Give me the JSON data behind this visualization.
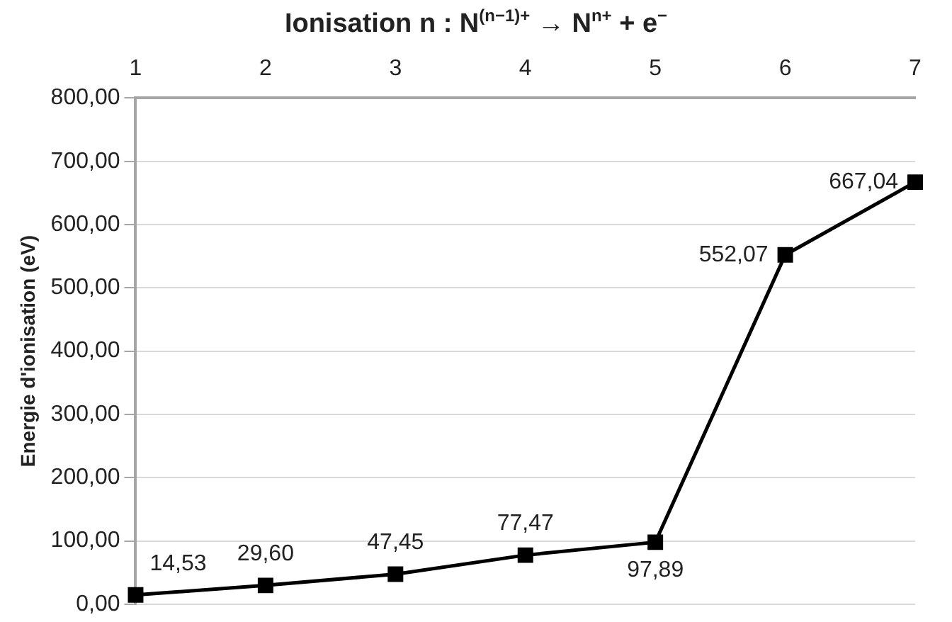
{
  "chart_data": {
    "type": "line",
    "title": "Ionisation n : N$^{(n−1)+}$ → N$^{n+}$ + e$^{−}$",
    "ylabel": "Energie d'ionisation (eV)",
    "x": [
      1,
      2,
      3,
      4,
      5,
      6,
      7
    ],
    "series": [
      {
        "color": "#000000",
        "values": [
          14.53,
          29.6,
          47.45,
          77.47,
          97.89,
          552.07,
          667.04
        ],
        "value_labels": [
          "14,53",
          "29,60",
          "47,45",
          "77,47",
          "97,89",
          "552,07",
          "667,04"
        ]
      }
    ],
    "xlim": [
      1,
      7
    ],
    "xticks": [
      1,
      2,
      3,
      4,
      5,
      6,
      7
    ],
    "ylim": [
      0,
      800
    ],
    "yticks": [
      {
        "value": 0,
        "label": "0,00"
      },
      {
        "value": 100,
        "label": "100,00"
      },
      {
        "value": 200,
        "label": "200,00"
      },
      {
        "value": 300,
        "label": "300,00"
      },
      {
        "value": 400,
        "label": "400,00"
      },
      {
        "value": 500,
        "label": "500,00"
      },
      {
        "value": 600,
        "label": "600,00"
      },
      {
        "value": 700,
        "label": "700,00"
      },
      {
        "value": 800,
        "label": "800,00"
      }
    ],
    "grid": "y",
    "marker": "square",
    "line_style": "solid",
    "legend": false
  }
}
